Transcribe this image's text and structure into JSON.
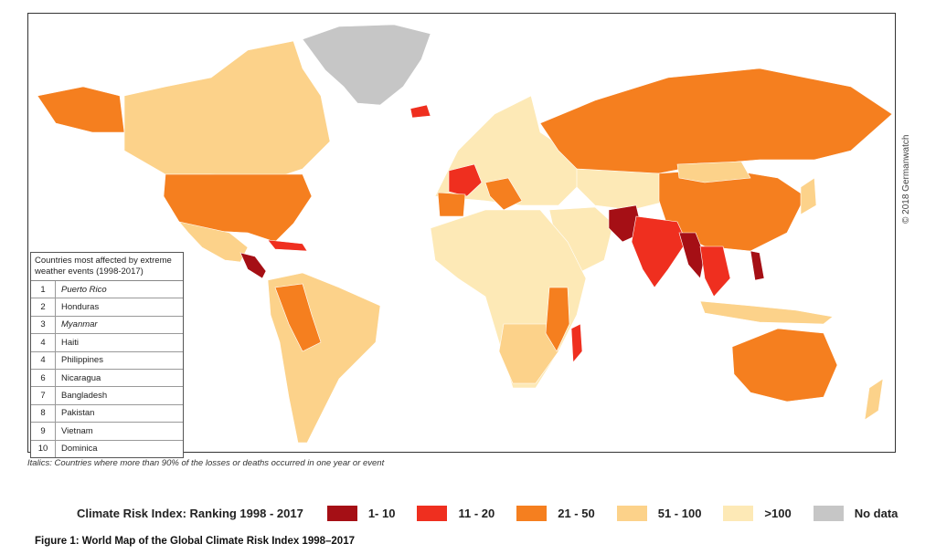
{
  "colors": {
    "c1_10": "#a50f15",
    "c11_20": "#ef2f1f",
    "c21_50": "#f57f1f",
    "c51_100": "#fcd28a",
    "c100plus": "#fde9b6",
    "nodata": "#c6c6c6",
    "ocean": "#ffffff"
  },
  "copyright": "© 2018 Germanwatch",
  "table": {
    "caption": "Countries most affected by extreme weather events (1998-2017)",
    "rows": [
      {
        "rank": "1",
        "country": "Puerto Rico",
        "italic": true
      },
      {
        "rank": "2",
        "country": "Honduras",
        "italic": false
      },
      {
        "rank": "3",
        "country": "Myanmar",
        "italic": true
      },
      {
        "rank": "4",
        "country": "Haiti",
        "italic": false
      },
      {
        "rank": "4",
        "country": "Philippines",
        "italic": false
      },
      {
        "rank": "6",
        "country": "Nicaragua",
        "italic": false
      },
      {
        "rank": "7",
        "country": "Bangladesh",
        "italic": false
      },
      {
        "rank": "8",
        "country": "Pakistan",
        "italic": false
      },
      {
        "rank": "9",
        "country": "Vietnam",
        "italic": false
      },
      {
        "rank": "10",
        "country": "Dominica",
        "italic": false
      }
    ]
  },
  "note": "Italics: Countries where more than 90% of the losses or deaths occurred in one year or event",
  "legend": {
    "title": "Climate Risk Index: Ranking 1998 - 2017",
    "items": [
      {
        "label": "1- 10",
        "color": "#a50f15"
      },
      {
        "label": "11 - 20",
        "color": "#ef2f1f"
      },
      {
        "label": "21 - 50",
        "color": "#f57f1f"
      },
      {
        "label": "51 - 100",
        "color": "#fcd28a"
      },
      {
        "label": ">100",
        "color": "#fde9b6"
      },
      {
        "label": "No data",
        "color": "#c6c6c6"
      }
    ]
  },
  "figure_caption": "Figure 1: World Map of the Global Climate Risk Index 1998–2017"
}
